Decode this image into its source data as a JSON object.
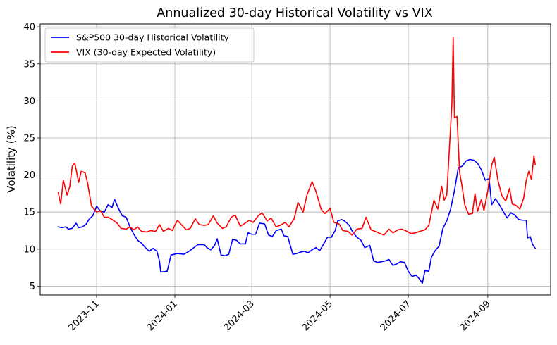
{
  "chart_data": {
    "type": "line",
    "title": "Annualized 30-day Historical Volatility vs VIX",
    "xlabel": "",
    "ylabel": "Volatility (%)",
    "xlim": [
      "2023-09-18",
      "2024-10-20"
    ],
    "ylim": [
      3.8,
      40.4
    ],
    "yticks": [
      5,
      10,
      15,
      20,
      25,
      30,
      35,
      40
    ],
    "xticks": [
      "2023-11",
      "2024-01",
      "2024-03",
      "2024-05",
      "2024-07",
      "2024-09"
    ],
    "xtick_dates": [
      "2023-11-01",
      "2024-01-01",
      "2024-03-01",
      "2024-05-01",
      "2024-07-01",
      "2024-09-01"
    ],
    "grid": true,
    "legend_position": "top-left",
    "series": [
      {
        "name": "S&P500 30-day Historical Volatility",
        "color": "#0000ff",
        "points": [
          [
            "2023-10-02",
            13.0
          ],
          [
            "2023-10-05",
            12.9
          ],
          [
            "2023-10-08",
            13.0
          ],
          [
            "2023-10-10",
            12.7
          ],
          [
            "2023-10-13",
            12.8
          ],
          [
            "2023-10-16",
            13.5
          ],
          [
            "2023-10-18",
            12.9
          ],
          [
            "2023-10-21",
            13.0
          ],
          [
            "2023-10-24",
            13.4
          ],
          [
            "2023-10-26",
            14.0
          ],
          [
            "2023-10-29",
            14.5
          ],
          [
            "2023-11-01",
            15.8
          ],
          [
            "2023-11-04",
            15.1
          ],
          [
            "2023-11-07",
            15.0
          ],
          [
            "2023-11-10",
            16.0
          ],
          [
            "2023-11-13",
            15.6
          ],
          [
            "2023-11-15",
            16.7
          ],
          [
            "2023-11-18",
            15.5
          ],
          [
            "2023-11-21",
            14.5
          ],
          [
            "2023-11-24",
            14.3
          ],
          [
            "2023-11-27",
            13.0
          ],
          [
            "2023-11-30",
            12.0
          ],
          [
            "2023-12-03",
            11.2
          ],
          [
            "2023-12-06",
            10.8
          ],
          [
            "2023-12-09",
            10.2
          ],
          [
            "2023-12-12",
            9.7
          ],
          [
            "2023-12-15",
            10.1
          ],
          [
            "2023-12-18",
            9.7
          ],
          [
            "2023-12-20",
            8.4
          ],
          [
            "2023-12-21",
            6.9
          ],
          [
            "2023-12-26",
            7.0
          ],
          [
            "2023-12-29",
            9.2
          ],
          [
            "2024-01-03",
            9.4
          ],
          [
            "2024-01-08",
            9.3
          ],
          [
            "2024-01-12",
            9.7
          ],
          [
            "2024-01-15",
            10.1
          ],
          [
            "2024-01-19",
            10.6
          ],
          [
            "2024-01-24",
            10.6
          ],
          [
            "2024-01-26",
            10.2
          ],
          [
            "2024-01-29",
            9.9
          ],
          [
            "2024-02-01",
            10.5
          ],
          [
            "2024-02-03",
            11.4
          ],
          [
            "2024-02-06",
            9.2
          ],
          [
            "2024-02-09",
            9.1
          ],
          [
            "2024-02-12",
            9.3
          ],
          [
            "2024-02-15",
            11.3
          ],
          [
            "2024-02-18",
            11.2
          ],
          [
            "2024-02-21",
            10.7
          ],
          [
            "2024-02-25",
            10.7
          ],
          [
            "2024-02-27",
            12.2
          ],
          [
            "2024-03-01",
            12.0
          ],
          [
            "2024-03-04",
            12.0
          ],
          [
            "2024-03-07",
            13.5
          ],
          [
            "2024-03-11",
            13.4
          ],
          [
            "2024-03-14",
            11.9
          ],
          [
            "2024-03-17",
            11.7
          ],
          [
            "2024-03-20",
            12.5
          ],
          [
            "2024-03-24",
            12.7
          ],
          [
            "2024-03-26",
            11.8
          ],
          [
            "2024-03-29",
            11.7
          ],
          [
            "2024-04-02",
            9.3
          ],
          [
            "2024-04-05",
            9.4
          ],
          [
            "2024-04-08",
            9.6
          ],
          [
            "2024-04-11",
            9.7
          ],
          [
            "2024-04-14",
            9.5
          ],
          [
            "2024-04-17",
            9.9
          ],
          [
            "2024-04-20",
            10.2
          ],
          [
            "2024-04-23",
            9.8
          ],
          [
            "2024-04-26",
            10.7
          ],
          [
            "2024-04-29",
            11.6
          ],
          [
            "2024-05-02",
            11.6
          ],
          [
            "2024-05-05",
            12.5
          ],
          [
            "2024-05-07",
            13.8
          ],
          [
            "2024-05-10",
            14.0
          ],
          [
            "2024-05-13",
            13.7
          ],
          [
            "2024-05-16",
            13.2
          ],
          [
            "2024-05-19",
            12.2
          ],
          [
            "2024-05-22",
            11.6
          ],
          [
            "2024-05-25",
            11.2
          ],
          [
            "2024-05-28",
            10.2
          ],
          [
            "2024-06-01",
            10.5
          ],
          [
            "2024-06-04",
            8.4
          ],
          [
            "2024-06-07",
            8.2
          ],
          [
            "2024-06-10",
            8.3
          ],
          [
            "2024-06-13",
            8.4
          ],
          [
            "2024-06-16",
            8.6
          ],
          [
            "2024-06-19",
            7.8
          ],
          [
            "2024-06-22",
            8.0
          ],
          [
            "2024-06-25",
            8.3
          ],
          [
            "2024-06-28",
            8.2
          ],
          [
            "2024-07-01",
            7.0
          ],
          [
            "2024-07-04",
            6.3
          ],
          [
            "2024-07-07",
            6.5
          ],
          [
            "2024-07-10",
            5.9
          ],
          [
            "2024-07-12",
            5.4
          ],
          [
            "2024-07-14",
            7.1
          ],
          [
            "2024-07-17",
            7.0
          ],
          [
            "2024-07-19",
            8.9
          ],
          [
            "2024-07-22",
            9.8
          ],
          [
            "2024-07-25",
            10.4
          ],
          [
            "2024-07-28",
            12.8
          ],
          [
            "2024-07-31",
            13.8
          ],
          [
            "2024-08-03",
            15.4
          ],
          [
            "2024-08-06",
            17.9
          ],
          [
            "2024-08-09",
            21.0
          ],
          [
            "2024-08-12",
            21.2
          ],
          [
            "2024-08-15",
            21.9
          ],
          [
            "2024-08-18",
            22.1
          ],
          [
            "2024-08-21",
            22.0
          ],
          [
            "2024-08-24",
            21.6
          ],
          [
            "2024-08-27",
            20.7
          ],
          [
            "2024-08-30",
            19.3
          ],
          [
            "2024-09-02",
            19.5
          ],
          [
            "2024-09-04",
            16.0
          ],
          [
            "2024-09-07",
            16.8
          ],
          [
            "2024-09-10",
            16.0
          ],
          [
            "2024-09-13",
            15.1
          ],
          [
            "2024-09-16",
            14.2
          ],
          [
            "2024-09-19",
            14.9
          ],
          [
            "2024-09-22",
            14.6
          ],
          [
            "2024-09-25",
            14.0
          ],
          [
            "2024-09-28",
            13.9
          ],
          [
            "2024-10-01",
            13.9
          ],
          [
            "2024-10-02",
            11.5
          ],
          [
            "2024-10-04",
            11.7
          ],
          [
            "2024-10-06",
            10.6
          ],
          [
            "2024-10-08",
            10.1
          ]
        ]
      },
      {
        "name": "VIX (30-day Expected Volatility)",
        "color": "#ff0000",
        "points": [
          [
            "2023-10-02",
            17.7
          ],
          [
            "2023-10-04",
            16.1
          ],
          [
            "2023-10-06",
            19.3
          ],
          [
            "2023-10-09",
            17.3
          ],
          [
            "2023-10-11",
            18.4
          ],
          [
            "2023-10-13",
            21.2
          ],
          [
            "2023-10-15",
            21.6
          ],
          [
            "2023-10-18",
            19.0
          ],
          [
            "2023-10-20",
            20.5
          ],
          [
            "2023-10-23",
            20.3
          ],
          [
            "2023-10-25",
            18.9
          ],
          [
            "2023-10-28",
            15.8
          ],
          [
            "2023-11-01",
            15.0
          ],
          [
            "2023-11-04",
            15.2
          ],
          [
            "2023-11-07",
            14.3
          ],
          [
            "2023-11-10",
            14.3
          ],
          [
            "2023-11-13",
            14.0
          ],
          [
            "2023-11-17",
            13.5
          ],
          [
            "2023-11-20",
            12.8
          ],
          [
            "2023-11-24",
            12.7
          ],
          [
            "2023-11-27",
            13.0
          ],
          [
            "2023-11-30",
            12.6
          ],
          [
            "2023-12-03",
            13.0
          ],
          [
            "2023-12-06",
            12.4
          ],
          [
            "2023-12-10",
            12.3
          ],
          [
            "2023-12-13",
            12.5
          ],
          [
            "2023-12-17",
            12.4
          ],
          [
            "2023-12-20",
            13.3
          ],
          [
            "2023-12-23",
            12.4
          ],
          [
            "2023-12-27",
            12.8
          ],
          [
            "2023-12-30",
            12.5
          ],
          [
            "2024-01-03",
            13.9
          ],
          [
            "2024-01-06",
            13.3
          ],
          [
            "2024-01-10",
            12.6
          ],
          [
            "2024-01-13",
            12.8
          ],
          [
            "2024-01-17",
            14.1
          ],
          [
            "2024-01-20",
            13.3
          ],
          [
            "2024-01-24",
            13.2
          ],
          [
            "2024-01-27",
            13.3
          ],
          [
            "2024-01-31",
            14.5
          ],
          [
            "2024-02-03",
            13.5
          ],
          [
            "2024-02-07",
            12.8
          ],
          [
            "2024-02-10",
            13.0
          ],
          [
            "2024-02-14",
            14.3
          ],
          [
            "2024-02-17",
            14.6
          ],
          [
            "2024-02-21",
            13.1
          ],
          [
            "2024-02-24",
            13.4
          ],
          [
            "2024-02-28",
            13.9
          ],
          [
            "2024-03-02",
            13.6
          ],
          [
            "2024-03-06",
            14.5
          ],
          [
            "2024-03-09",
            14.9
          ],
          [
            "2024-03-13",
            13.8
          ],
          [
            "2024-03-16",
            14.2
          ],
          [
            "2024-03-20",
            13.0
          ],
          [
            "2024-03-23",
            13.2
          ],
          [
            "2024-03-27",
            13.6
          ],
          [
            "2024-03-30",
            13.0
          ],
          [
            "2024-04-03",
            14.1
          ],
          [
            "2024-04-06",
            16.3
          ],
          [
            "2024-04-10",
            15.0
          ],
          [
            "2024-04-13",
            17.3
          ],
          [
            "2024-04-17",
            19.1
          ],
          [
            "2024-04-20",
            17.8
          ],
          [
            "2024-04-24",
            15.4
          ],
          [
            "2024-04-27",
            14.8
          ],
          [
            "2024-05-01",
            15.5
          ],
          [
            "2024-05-04",
            13.6
          ],
          [
            "2024-05-08",
            13.4
          ],
          [
            "2024-05-11",
            12.5
          ],
          [
            "2024-05-15",
            12.4
          ],
          [
            "2024-05-18",
            11.9
          ],
          [
            "2024-05-22",
            12.7
          ],
          [
            "2024-05-26",
            12.8
          ],
          [
            "2024-05-29",
            14.3
          ],
          [
            "2024-06-02",
            12.6
          ],
          [
            "2024-06-05",
            12.4
          ],
          [
            "2024-06-09",
            12.1
          ],
          [
            "2024-06-12",
            11.9
          ],
          [
            "2024-06-16",
            12.7
          ],
          [
            "2024-06-19",
            12.2
          ],
          [
            "2024-06-23",
            12.6
          ],
          [
            "2024-06-26",
            12.7
          ],
          [
            "2024-06-30",
            12.4
          ],
          [
            "2024-07-03",
            12.1
          ],
          [
            "2024-07-07",
            12.2
          ],
          [
            "2024-07-10",
            12.4
          ],
          [
            "2024-07-14",
            12.6
          ],
          [
            "2024-07-17",
            13.2
          ],
          [
            "2024-07-21",
            16.6
          ],
          [
            "2024-07-24",
            15.4
          ],
          [
            "2024-07-27",
            18.5
          ],
          [
            "2024-07-29",
            16.6
          ],
          [
            "2024-07-31",
            17.3
          ],
          [
            "2024-08-02",
            23.4
          ],
          [
            "2024-08-04",
            29.6
          ],
          [
            "2024-08-05",
            38.6
          ],
          [
            "2024-08-06",
            27.7
          ],
          [
            "2024-08-08",
            27.9
          ],
          [
            "2024-08-10",
            20.4
          ],
          [
            "2024-08-12",
            18.4
          ],
          [
            "2024-08-14",
            16.0
          ],
          [
            "2024-08-17",
            14.7
          ],
          [
            "2024-08-20",
            14.8
          ],
          [
            "2024-08-22",
            17.5
          ],
          [
            "2024-08-24",
            15.1
          ],
          [
            "2024-08-27",
            16.7
          ],
          [
            "2024-08-29",
            15.2
          ],
          [
            "2024-09-01",
            17.9
          ],
          [
            "2024-09-04",
            21.3
          ],
          [
            "2024-09-06",
            22.4
          ],
          [
            "2024-09-09",
            19.2
          ],
          [
            "2024-09-12",
            17.2
          ],
          [
            "2024-09-15",
            16.5
          ],
          [
            "2024-09-18",
            18.2
          ],
          [
            "2024-09-20",
            16.1
          ],
          [
            "2024-09-23",
            15.9
          ],
          [
            "2024-09-26",
            15.4
          ],
          [
            "2024-09-29",
            16.9
          ],
          [
            "2024-10-01",
            19.3
          ],
          [
            "2024-10-03",
            20.5
          ],
          [
            "2024-10-05",
            19.4
          ],
          [
            "2024-10-07",
            22.6
          ],
          [
            "2024-10-08",
            21.4
          ]
        ]
      }
    ]
  }
}
